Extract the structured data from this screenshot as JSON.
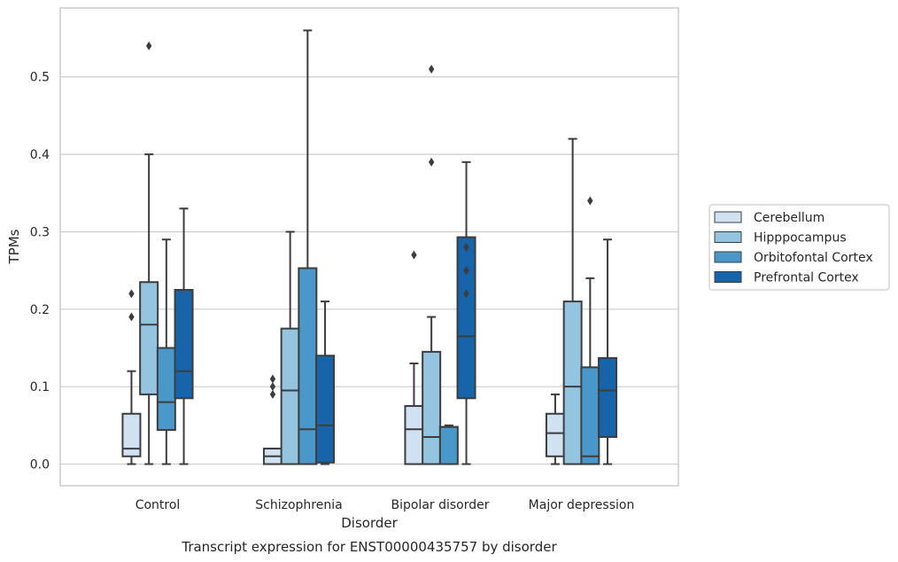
{
  "chart_data": {
    "type": "box",
    "title": "Transcript expression for ENST00000435757 by disorder",
    "xlabel": "Disorder",
    "ylabel": "TPMs",
    "categories": [
      "Control",
      "Schizophrenia",
      "Bipolar disorder",
      "Major depression"
    ],
    "yticks": [
      "0.0",
      "0.1",
      "0.2",
      "0.3",
      "0.4",
      "0.5"
    ],
    "ylim": [
      -0.028,
      0.589
    ],
    "grid": true,
    "legend_position": "right",
    "series": [
      {
        "name": "Cerebellum",
        "color": "#d0e1f2",
        "boxes": [
          {
            "whislo": 0.0,
            "q1": 0.01,
            "med": 0.02,
            "q3": 0.065,
            "whishi": 0.12,
            "fliers": [
              0.19,
              0.22
            ]
          },
          {
            "whislo": 0.0,
            "q1": 0.0,
            "med": 0.01,
            "q3": 0.02,
            "whishi": 0.02,
            "fliers": [
              0.09,
              0.1,
              0.11
            ]
          },
          {
            "whislo": 0.0,
            "q1": 0.0,
            "med": 0.045,
            "q3": 0.075,
            "whishi": 0.13,
            "fliers": [
              0.27
            ]
          },
          {
            "whislo": 0.0,
            "q1": 0.01,
            "med": 0.04,
            "q3": 0.065,
            "whishi": 0.09,
            "fliers": []
          }
        ]
      },
      {
        "name": "Hipppocampus",
        "color": "#94c4df",
        "boxes": [
          {
            "whislo": 0.0,
            "q1": 0.09,
            "med": 0.18,
            "q3": 0.235,
            "whishi": 0.4,
            "fliers": [
              0.54
            ]
          },
          {
            "whislo": 0.0,
            "q1": 0.0,
            "med": 0.095,
            "q3": 0.175,
            "whishi": 0.3,
            "fliers": []
          },
          {
            "whislo": 0.0,
            "q1": 0.0,
            "med": 0.035,
            "q3": 0.145,
            "whishi": 0.19,
            "fliers": [
              0.39,
              0.51
            ]
          },
          {
            "whislo": 0.0,
            "q1": 0.0,
            "med": 0.1,
            "q3": 0.21,
            "whishi": 0.42,
            "fliers": []
          }
        ]
      },
      {
        "name": "Orbitofontal Cortex",
        "color": "#4a98c9",
        "boxes": [
          {
            "whislo": 0.0,
            "q1": 0.044,
            "med": 0.08,
            "q3": 0.15,
            "whishi": 0.29,
            "fliers": []
          },
          {
            "whislo": 0.0,
            "q1": 0.0,
            "med": 0.045,
            "q3": 0.253,
            "whishi": 0.56,
            "fliers": []
          },
          {
            "whislo": 0.0,
            "q1": 0.0,
            "med": 0.048,
            "q3": 0.048,
            "whishi": 0.05,
            "fliers": []
          },
          {
            "whislo": 0.0,
            "q1": 0.0,
            "med": 0.01,
            "q3": 0.125,
            "whishi": 0.24,
            "fliers": [
              0.34
            ]
          }
        ]
      },
      {
        "name": "Prefrontal Cortex",
        "color": "#1764ab",
        "boxes": [
          {
            "whislo": 0.0,
            "q1": 0.085,
            "med": 0.12,
            "q3": 0.225,
            "whishi": 0.33,
            "fliers": []
          },
          {
            "whislo": 0.0,
            "q1": 0.002,
            "med": 0.05,
            "q3": 0.14,
            "whishi": 0.21,
            "fliers": []
          },
          {
            "whislo": 0.0,
            "q1": 0.085,
            "med": 0.165,
            "q3": 0.293,
            "whishi": 0.39,
            "fliers": [
              0.22,
              0.25,
              0.28
            ]
          },
          {
            "whislo": 0.0,
            "q1": 0.035,
            "med": 0.095,
            "q3": 0.137,
            "whishi": 0.29,
            "fliers": []
          }
        ]
      }
    ]
  }
}
